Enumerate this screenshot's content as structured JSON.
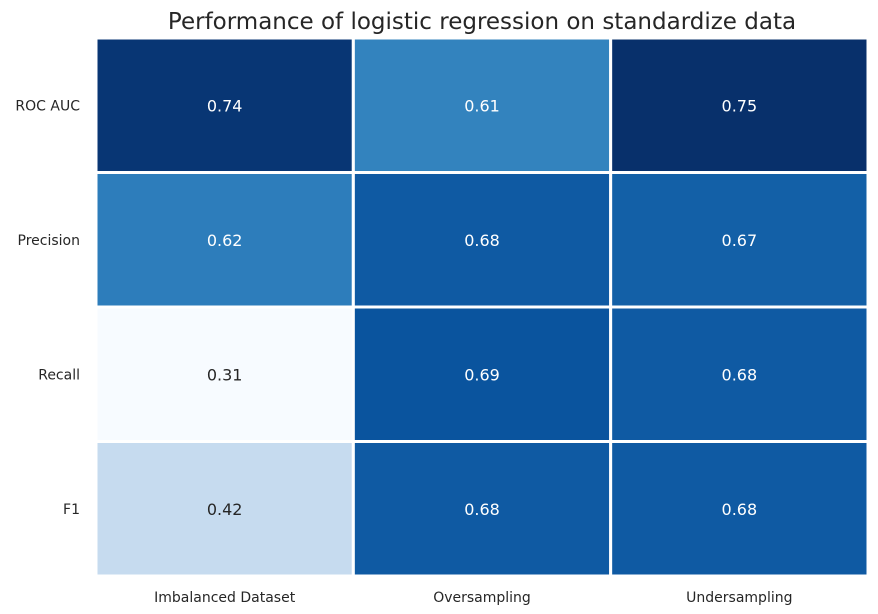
{
  "chart_data": {
    "type": "heatmap",
    "title": "Performance of logistic regression on standardize data",
    "xlabel": "",
    "ylabel": "",
    "x_categories": [
      "Imbalanced Dataset",
      "Oversampling",
      "Undersampling"
    ],
    "y_categories": [
      "ROC AUC",
      "Precision",
      "Recall",
      "F1"
    ],
    "values": [
      [
        0.74,
        0.61,
        0.75
      ],
      [
        0.62,
        0.68,
        0.67
      ],
      [
        0.31,
        0.69,
        0.68
      ],
      [
        0.42,
        0.68,
        0.68
      ]
    ],
    "value_labels": [
      [
        "0.74",
        "0.61",
        "0.75"
      ],
      [
        "0.62",
        "0.68",
        "0.67"
      ],
      [
        "0.31",
        "0.69",
        "0.68"
      ],
      [
        "0.42",
        "0.68",
        "0.68"
      ]
    ],
    "colormap": "Blues",
    "color_range": [
      0.31,
      0.75
    ],
    "colorbar": false,
    "cell_border_color": "#ffffff",
    "grid": false
  }
}
